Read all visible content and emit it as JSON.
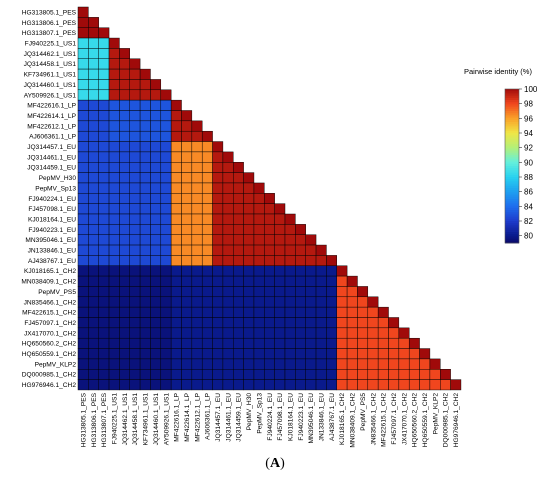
{
  "panel_label": {
    "open": "(",
    "letter": "A",
    "close": ")"
  },
  "chart_data": {
    "type": "heatmap",
    "layout": "lower-triangle",
    "legend_title": "Pairwise identity (%)",
    "legend_ticks": [
      100,
      98,
      96,
      94,
      92,
      90,
      88,
      86,
      84,
      82,
      80
    ],
    "value_range": [
      79,
      100
    ],
    "colorscale": [
      [
        79,
        "#0A0A6A"
      ],
      [
        80,
        "#0A1A8C"
      ],
      [
        82,
        "#1E3CCC"
      ],
      [
        84,
        "#1E6EEE"
      ],
      [
        86,
        "#1EA0F0"
      ],
      [
        88,
        "#28D2F0"
      ],
      [
        90,
        "#64F0DC"
      ],
      [
        92,
        "#B4F078"
      ],
      [
        94,
        "#F0E646"
      ],
      [
        96,
        "#FAA028"
      ],
      [
        98,
        "#F0461E"
      ],
      [
        100,
        "#A00A0A"
      ]
    ],
    "labels": [
      "HG313805.1_PES",
      "HG313806.1_PES",
      "HG313807.1_PES",
      "FJ940225.1_US1",
      "JQ314462.1_US1",
      "JQ314458.1_US1",
      "KF734961.1_US1",
      "JQ314460.1_US1",
      "AY509926.1_US1",
      "MF422616.1_LP",
      "MF422614.1_LP",
      "MF422612.1_LP",
      "AJ606361.1_LP",
      "JQ314457.1_EU",
      "JQ314461.1_EU",
      "JQ314459.1_EU",
      "PepMV_H30",
      "PepMV_Sp13",
      "FJ940224.1_EU",
      "FJ457098.1_EU",
      "KJ018164.1_EU",
      "FJ940223.1_EU",
      "MN395046.1_EU",
      "JN133846.1_EU",
      "AJ438767.1_EU",
      "KJ018165.1_CH2",
      "MN038409.1_CH2",
      "PepMV_PS5",
      "JN835466.1_CH2",
      "MF422615.1_CH2",
      "FJ457097.1_CH2",
      "JX417070.1_CH2",
      "HQ650560.2_CH2",
      "HQ650559.1_CH2",
      "PepMV_KLP2",
      "DQ000985.1_CH2",
      "HG976946.1_CH2"
    ],
    "groups": [
      "PES",
      "US1",
      "LP",
      "EU",
      "CH2"
    ],
    "group_sizes": [
      3,
      6,
      4,
      12,
      12
    ],
    "between_group_identity": [
      [
        100,
        0,
        0,
        0,
        0
      ],
      [
        88.5,
        99.5,
        0,
        0,
        0
      ],
      [
        82.5,
        83,
        99.5,
        0,
        0
      ],
      [
        82.5,
        82.5,
        96.5,
        99.5,
        0
      ],
      [
        79.5,
        79.5,
        80,
        80,
        98
      ]
    ],
    "diagonal_identity": 100
  }
}
